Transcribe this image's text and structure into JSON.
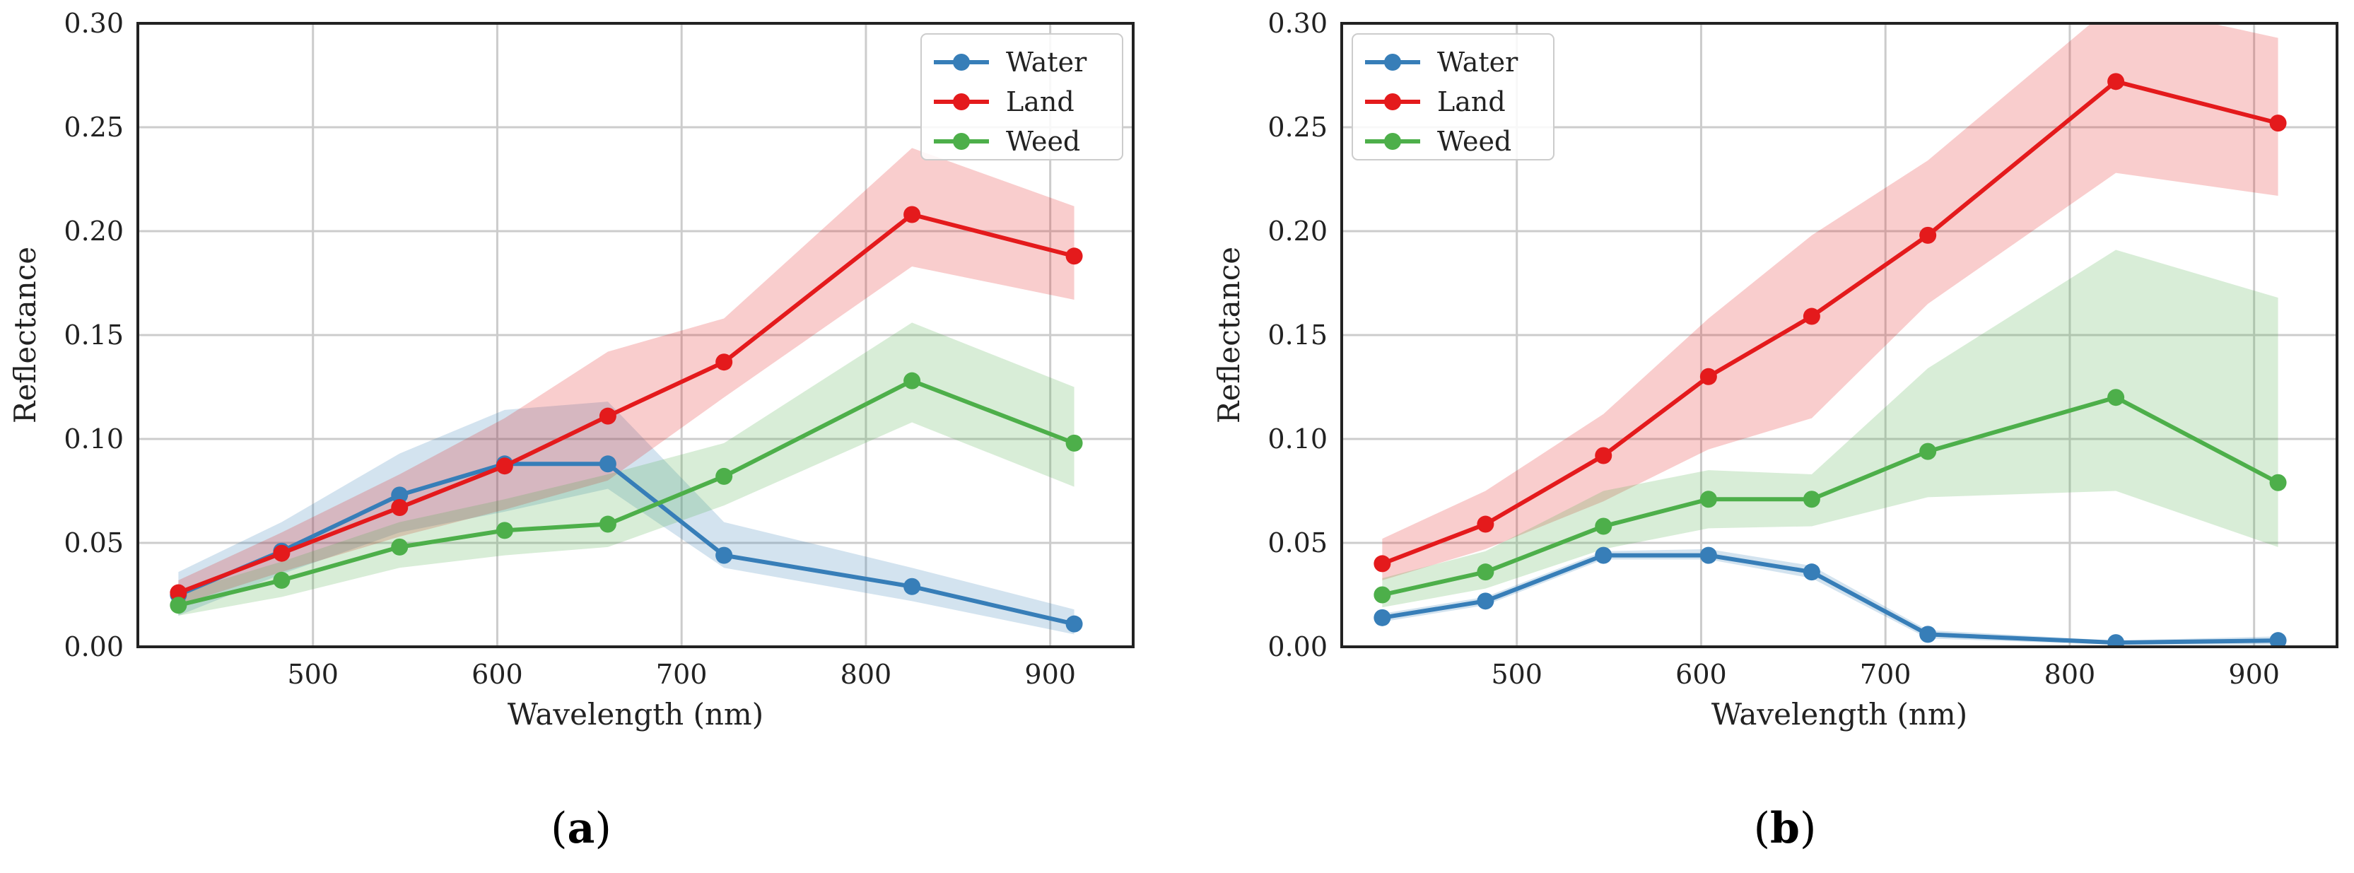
{
  "chart_data": [
    {
      "type": "line",
      "panel_label": "(a)",
      "panel_letter": "a",
      "xlabel": "Wavelength (nm)",
      "ylabel": "Reflectance",
      "xlim": [
        405,
        945
      ],
      "ylim": [
        0,
        0.3
      ],
      "xticks": [
        500,
        600,
        700,
        800,
        900
      ],
      "yticks": [
        0.0,
        0.05,
        0.1,
        0.15,
        0.2,
        0.25,
        0.3
      ],
      "ytick_labels": [
        "0.00",
        "0.05",
        "0.10",
        "0.15",
        "0.20",
        "0.25",
        "0.30"
      ],
      "grid": true,
      "legend_position": "top-right",
      "x": [
        427,
        483,
        547,
        604,
        660,
        723,
        825,
        913
      ],
      "series": [
        {
          "name": "Water",
          "color": "#377eb8",
          "values": [
            0.025,
            0.046,
            0.073,
            0.088,
            0.088,
            0.044,
            0.029,
            0.011
          ],
          "lower": [
            0.015,
            0.035,
            0.055,
            0.065,
            0.076,
            0.038,
            0.022,
            0.006
          ],
          "upper": [
            0.036,
            0.06,
            0.093,
            0.114,
            0.118,
            0.06,
            0.038,
            0.018
          ]
        },
        {
          "name": "Land",
          "color": "#e41a1c",
          "values": [
            0.026,
            0.045,
            0.067,
            0.087,
            0.111,
            0.137,
            0.208,
            0.188
          ],
          "lower": [
            0.02,
            0.036,
            0.053,
            0.066,
            0.08,
            0.12,
            0.183,
            0.167
          ],
          "upper": [
            0.032,
            0.055,
            0.083,
            0.11,
            0.142,
            0.158,
            0.24,
            0.212
          ]
        },
        {
          "name": "Weed",
          "color": "#4daf4a",
          "values": [
            0.02,
            0.032,
            0.048,
            0.056,
            0.059,
            0.082,
            0.128,
            0.098
          ],
          "lower": [
            0.015,
            0.024,
            0.038,
            0.044,
            0.048,
            0.068,
            0.108,
            0.077
          ],
          "upper": [
            0.026,
            0.041,
            0.06,
            0.071,
            0.083,
            0.098,
            0.156,
            0.125
          ]
        }
      ]
    },
    {
      "type": "line",
      "panel_label": "(b)",
      "panel_letter": "b",
      "xlabel": "Wavelength (nm)",
      "ylabel": "Reflectance",
      "xlim": [
        405,
        945
      ],
      "ylim": [
        0,
        0.3
      ],
      "xticks": [
        500,
        600,
        700,
        800,
        900
      ],
      "yticks": [
        0.0,
        0.05,
        0.1,
        0.15,
        0.2,
        0.25,
        0.3
      ],
      "ytick_labels": [
        "0.00",
        "0.05",
        "0.10",
        "0.15",
        "0.20",
        "0.25",
        "0.30"
      ],
      "grid": true,
      "legend_position": "top-left",
      "x": [
        427,
        483,
        547,
        604,
        660,
        723,
        825,
        913
      ],
      "series": [
        {
          "name": "Water",
          "color": "#377eb8",
          "values": [
            0.014,
            0.022,
            0.044,
            0.044,
            0.036,
            0.006,
            0.002,
            0.003
          ],
          "lower": [
            0.012,
            0.02,
            0.042,
            0.042,
            0.033,
            0.004,
            0.001,
            0.001
          ],
          "upper": [
            0.016,
            0.024,
            0.046,
            0.047,
            0.039,
            0.008,
            0.003,
            0.005
          ]
        },
        {
          "name": "Land",
          "color": "#e41a1c",
          "values": [
            0.04,
            0.059,
            0.092,
            0.13,
            0.159,
            0.198,
            0.272,
            0.252
          ],
          "lower": [
            0.032,
            0.047,
            0.07,
            0.095,
            0.11,
            0.165,
            0.228,
            0.217
          ],
          "upper": [
            0.052,
            0.075,
            0.112,
            0.158,
            0.198,
            0.234,
            0.31,
            0.293
          ]
        },
        {
          "name": "Weed",
          "color": "#4daf4a",
          "values": [
            0.025,
            0.036,
            0.058,
            0.071,
            0.071,
            0.094,
            0.12,
            0.079
          ],
          "lower": [
            0.019,
            0.028,
            0.047,
            0.057,
            0.058,
            0.072,
            0.075,
            0.048
          ],
          "upper": [
            0.033,
            0.046,
            0.075,
            0.085,
            0.083,
            0.134,
            0.191,
            0.168
          ]
        }
      ]
    }
  ]
}
